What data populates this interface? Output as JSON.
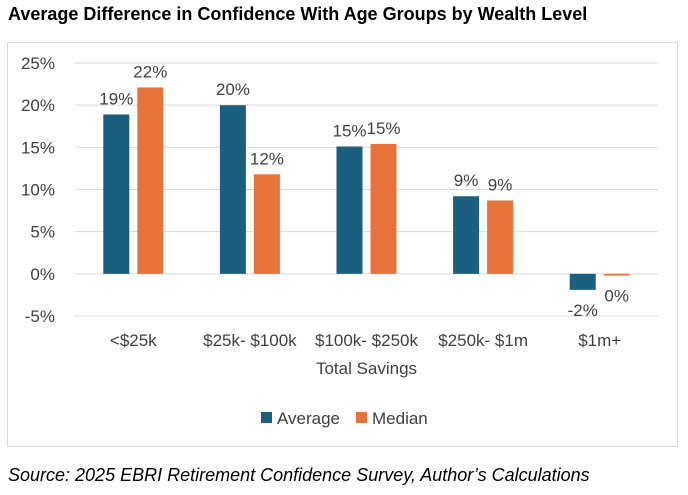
{
  "title": "Average Difference in Confidence With Age Groups by Wealth Level",
  "source": "Source: 2025 EBRI Retirement Confidence Survey, Author’s Calculations",
  "colors": {
    "average": "#1a5e80",
    "median": "#e8733a",
    "grid": "#d9d9d9",
    "text": "#404040"
  },
  "chart_data": {
    "type": "bar",
    "title": "Average Difference in Confidence With Age Groups by Wealth Level",
    "xlabel": "Total Savings",
    "ylabel": "",
    "categories": [
      "<$25k",
      "$25k- $100k",
      "$100k- $250k",
      "$250k- $1m",
      "$1m+"
    ],
    "series": [
      {
        "name": "Average",
        "values": [
          18.9,
          20.0,
          15.1,
          9.2,
          -1.9
        ],
        "labels": [
          "19%",
          "20%",
          "15%",
          "9%",
          "-2%"
        ]
      },
      {
        "name": "Median",
        "values": [
          22.1,
          11.8,
          15.4,
          8.7,
          -0.2
        ],
        "labels": [
          "22%",
          "12%",
          "15%",
          "9%",
          "0%"
        ]
      }
    ],
    "yticks": [
      25,
      20,
      15,
      10,
      5,
      0,
      -5
    ],
    "ytick_labels": [
      "25%",
      "20%",
      "15%",
      "10%",
      "5%",
      "0%",
      "-5%"
    ],
    "ylim": [
      -5,
      25
    ],
    "grid": true,
    "legend_position": "bottom"
  }
}
